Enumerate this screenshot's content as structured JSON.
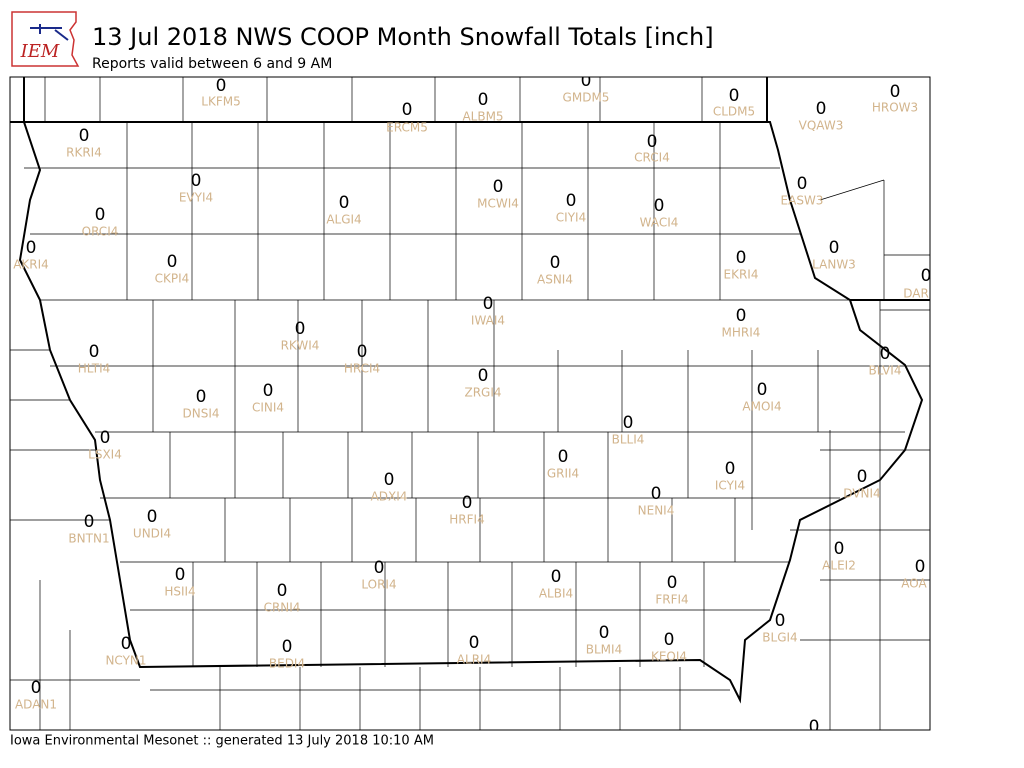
{
  "header": {
    "logo": "IEM",
    "title": "13 Jul 2018 NWS COOP Month Snowfall Totals [inch]",
    "subtitle": "Reports valid between 6 and 9 AM"
  },
  "stations": [
    {
      "id": "LKFM5",
      "value": 0
    },
    {
      "id": "ERCM5",
      "value": 0
    },
    {
      "id": "ALBM5",
      "value": 0
    },
    {
      "id": "GMDM5",
      "value": 0
    },
    {
      "id": "CLDM5",
      "value": 0
    },
    {
      "id": "VQAW3",
      "value": 0
    },
    {
      "id": "HROW3",
      "value": 0
    },
    {
      "id": "RKRI4",
      "value": 0
    },
    {
      "id": "CRCI4",
      "value": 0
    },
    {
      "id": "EVYI4",
      "value": 0
    },
    {
      "id": "ALGI4",
      "value": 0
    },
    {
      "id": "MCWI4",
      "value": 0
    },
    {
      "id": "CIYI4",
      "value": 0
    },
    {
      "id": "WACI4",
      "value": 0
    },
    {
      "id": "EASW3",
      "value": 0
    },
    {
      "id": "ORCI4",
      "value": 0
    },
    {
      "id": "AKRI4",
      "value": 0
    },
    {
      "id": "LANW3",
      "value": 0
    },
    {
      "id": "EKRI4",
      "value": 0
    },
    {
      "id": "ASNI4",
      "value": 0
    },
    {
      "id": "CKPI4",
      "value": 0
    },
    {
      "id": "DAR",
      "value": 0
    },
    {
      "id": "IWAI4",
      "value": 0
    },
    {
      "id": "RKWI4",
      "value": 0
    },
    {
      "id": "MHRI4",
      "value": 0
    },
    {
      "id": "HRCI4",
      "value": 0
    },
    {
      "id": "HLTI4",
      "value": 0
    },
    {
      "id": "BLVI4",
      "value": 0
    },
    {
      "id": "DNSI4",
      "value": 0
    },
    {
      "id": "CINI4",
      "value": 0
    },
    {
      "id": "ZRGI4",
      "value": 0
    },
    {
      "id": "AMOI4",
      "value": 0
    },
    {
      "id": "BLLI4",
      "value": 0
    },
    {
      "id": "LSXI4",
      "value": 0
    },
    {
      "id": "GRII4",
      "value": 0
    },
    {
      "id": "ICYI4",
      "value": 0
    },
    {
      "id": "DVNI4",
      "value": 0
    },
    {
      "id": "ADXI4",
      "value": 0
    },
    {
      "id": "HRFI4",
      "value": 0
    },
    {
      "id": "NENI4",
      "value": 0
    },
    {
      "id": "BNTN1",
      "value": 0
    },
    {
      "id": "UNDI4",
      "value": 0
    },
    {
      "id": "ALEI2",
      "value": 0
    },
    {
      "id": "AOA",
      "value": 0
    },
    {
      "id": "HSII4",
      "value": 0
    },
    {
      "id": "LORI4",
      "value": 0
    },
    {
      "id": "ALBI4",
      "value": 0
    },
    {
      "id": "FRFI4",
      "value": 0
    },
    {
      "id": "CRNI4",
      "value": 0
    },
    {
      "id": "BLGI4",
      "value": 0
    },
    {
      "id": "NCYN1",
      "value": 0
    },
    {
      "id": "ALRI4",
      "value": 0
    },
    {
      "id": "BLMI4",
      "value": 0
    },
    {
      "id": "KEOI4",
      "value": 0
    },
    {
      "id": "BEDI4",
      "value": 0
    },
    {
      "id": "ADAN1",
      "value": 0
    },
    {
      "id": null,
      "value": 0
    }
  ],
  "footer": "Iowa Environmental Mesonet :: generated 13 July 2018 10:10 AM"
}
